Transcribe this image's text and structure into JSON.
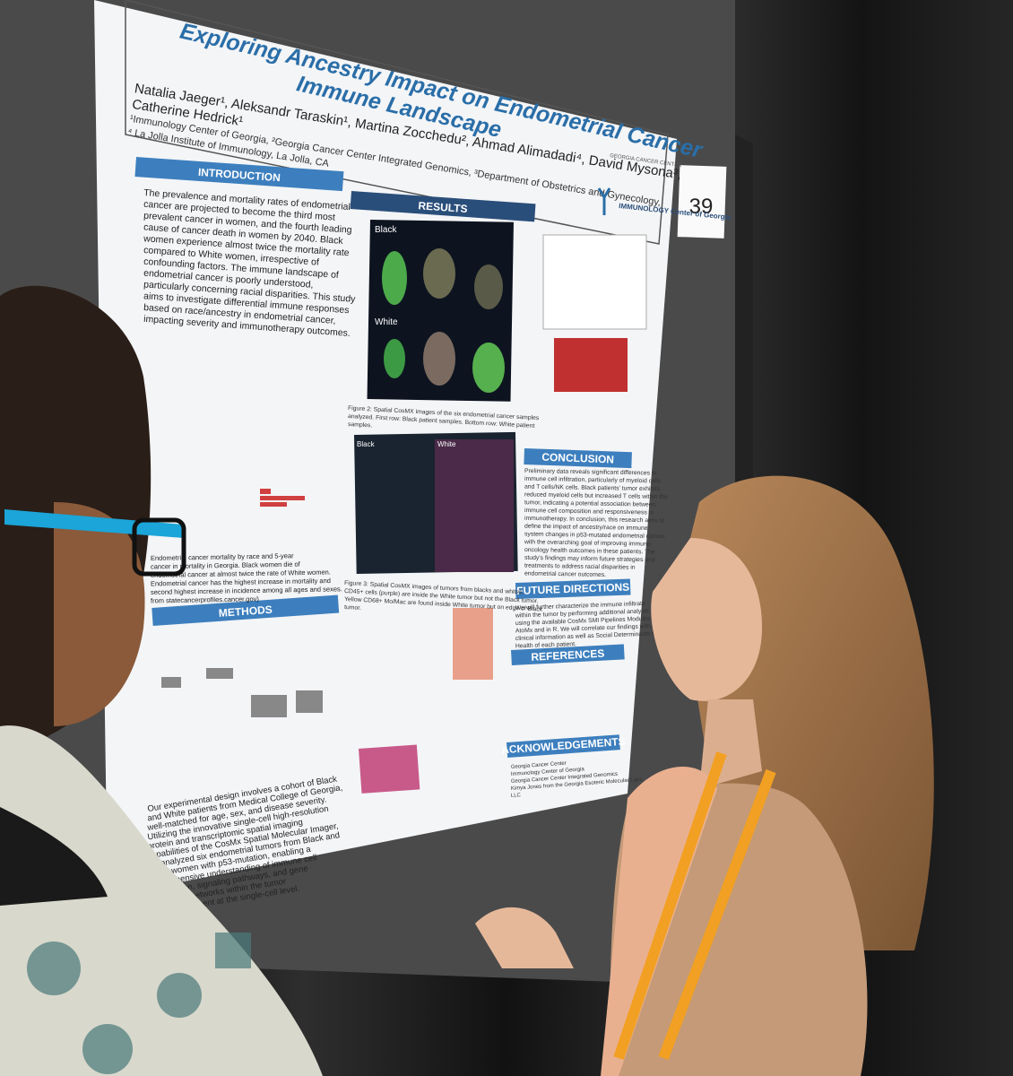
{
  "poster": {
    "title_lines": [
      "Exploring Ancestry Impact on Endometrial Cancer",
      "Immune Landscape"
    ],
    "authors_lines": [
      "Natalia Jaeger¹, Aleksandr Taraskin¹, Martina Zocchedu², Ahmad Alimadadi⁴, David Mysona³,",
      "Catherine Hedrick¹"
    ],
    "affiliations_lines": [
      "¹Immunology Center of Georgia, ²Georgia Cancer Center Integrated Genomics, ³Department of Obstetrics and Gynecology,",
      "⁴ La Jolla Institute of Immunology, La Jolla, CA"
    ],
    "logos": [
      "GEORGIA CANCER CENTER",
      "IMMUNOLOGY Center of Georgia"
    ],
    "board_number": "39",
    "sections": {
      "introduction": "INTRODUCTION",
      "results": "RESULTS",
      "methods": "METHODS",
      "conclusion": "CONCLUSION",
      "future": "FUTURE DIRECTIONS",
      "references": "REFERENCES",
      "acknowledgements": "ACKNOWLEDGEMENTS"
    },
    "introduction_lines": [
      "The prevalence and mortality rates of endometrial",
      "cancer are projected to become the third most",
      "prevalent cancer in women, and the fourth leading",
      "cause of cancer death in women by 2040. Black",
      "women experience almost twice the mortality rate",
      "compared to White women, irrespective of",
      "confounding factors. The immune landscape of",
      "endometrial cancer is poorly understood,",
      "particularly concerning racial disparities. This study",
      "aims to investigate differential immune responses",
      "based on race/ancestry in endometrial cancer,",
      "impacting severity and immunotherapy outcomes."
    ],
    "methods_lines": [
      "Our experimental design involves a cohort of Black",
      "and White patients from Medical College of Georgia,",
      "well-matched for age, sex, and disease severity.",
      "Utilizing the innovative single-cell high-resolution",
      "protein and transcriptomic spatial imaging",
      "capabilities of the CosMx Spatial Molecular Imager,",
      "we analyzed six endometrial tumors from Black and",
      "White women with p53-mutation, enabling a",
      "comprehensive understanding of immune cell",
      "composition, signaling pathways, and gene",
      "expression networks within the tumor",
      "microenvironment at the single-cell level."
    ],
    "figure_labels": [
      "Black",
      "White",
      "Black",
      "White"
    ],
    "figure2_lines": [
      "Figure 2: Spatial CosMX images of the six endometrial cancer samples",
      "analyzed. First row: Black patient samples. Bottom row: White patient",
      "samples."
    ],
    "figure3_lines": [
      "Figure 3: Spatial CosMX images of tumors from blacks and whites.",
      "CD45+ cells (purple) are inside the White tumor but not the Black tumor.",
      "Yellow CD68+ Mo/Mac are found inside White tumor but on edge of Black",
      "tumor."
    ],
    "figure1_lines": [
      "Endometrial cancer mortality by race and 5-year",
      "cancer in mortality in Georgia. Black women die of",
      "endometrial cancer at almost twice the rate of White women.",
      "Endometrial cancer has the highest increase in mortality and",
      "second highest increase in incidence among all ages and sexes.",
      "from statecancerprofiles.cancer.gov)"
    ],
    "conclusion_lines": [
      "Preliminary data reveals significant differences in",
      "immune cell infiltration, particularly of myeloid cells",
      "and T cells/NK cells. Black patients' tumor exhibits",
      "reduced myeloid cells but increased T cells within the",
      "tumor, indicating a potential association between",
      "immune cell composition and responsiveness to",
      "immunotherapy. In conclusion, this research aims to",
      "define the impact of ancestry/race on immune",
      "system changes in p53-mutated endometrial cancer,",
      "with the overarching goal of improving immuno-",
      "oncology health outcomes in these patients. The",
      "study's findings may inform future strategies and",
      "treatments to address racial disparities in",
      "endometrial cancer outcomes."
    ],
    "future_lines": [
      "We will further characterize the immune infiltrate",
      "within the tumor by performing additional analysis",
      "using the available CosMx SMI Pipelines Modules in",
      "AtoMx and in R. We will correlate our findings with",
      "clinical information as well as Social Determinants of",
      "Health of each patient."
    ],
    "acknowledgements_lines": [
      "Georgia Cancer Center",
      "Immunology Center of Georgia",
      "Georgia Cancer Center Integrated Genomics",
      "Kimya Jones from the Georgia Esoteric Molecular Labs,",
      "LLC"
    ]
  }
}
